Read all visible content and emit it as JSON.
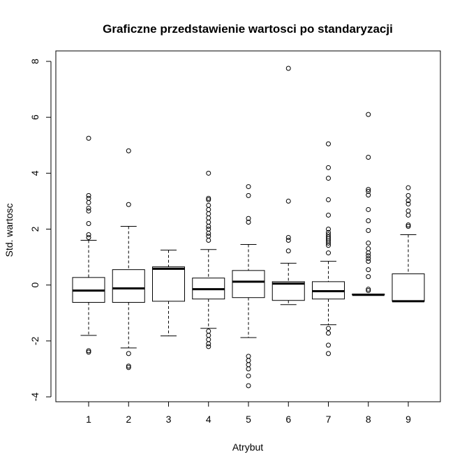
{
  "chart_data": {
    "type": "boxplot",
    "title": "Graficzne przedstawienie wartosci po standaryzacji",
    "xlabel": "Atrybut",
    "ylabel": "Std. wartosc",
    "ylim": [
      -4,
      8
    ],
    "yticks": [
      -4,
      -2,
      0,
      2,
      4,
      6,
      8
    ],
    "ytick_labels": [
      "-4",
      "-2",
      "0",
      "2",
      "4",
      "6",
      "8"
    ],
    "grid": false,
    "legend": "none",
    "categories": [
      "1",
      "2",
      "3",
      "4",
      "5",
      "6",
      "7",
      "8",
      "9"
    ],
    "boxes": [
      {
        "category": "1",
        "whisker_low": -1.8,
        "q1": -0.62,
        "median": -0.2,
        "q3": 0.27,
        "whisker_high": 1.6,
        "outliers": [
          5.25,
          3.2,
          3.1,
          2.95,
          2.75,
          2.65,
          2.2,
          1.8,
          1.7,
          -2.35,
          -2.4
        ]
      },
      {
        "category": "2",
        "whisker_low": -2.25,
        "q1": -0.62,
        "median": -0.12,
        "q3": 0.55,
        "whisker_high": 2.1,
        "outliers": [
          4.8,
          2.88,
          -2.45,
          -2.9,
          -2.95
        ]
      },
      {
        "category": "3",
        "whisker_low": -1.82,
        "q1": -0.58,
        "median": 0.58,
        "q3": 0.65,
        "whisker_high": 1.25,
        "outliers": []
      },
      {
        "category": "4",
        "whisker_low": -1.55,
        "q1": -0.5,
        "median": -0.15,
        "q3": 0.25,
        "whisker_high": 1.27,
        "outliers": [
          4.0,
          3.1,
          3.05,
          2.85,
          2.7,
          2.55,
          2.4,
          2.25,
          2.1,
          2.0,
          1.85,
          1.75,
          1.6,
          -1.65,
          -1.8,
          -1.95,
          -2.1,
          -2.2
        ]
      },
      {
        "category": "5",
        "whisker_low": -1.88,
        "q1": -0.45,
        "median": 0.12,
        "q3": 0.52,
        "whisker_high": 1.45,
        "outliers": [
          3.52,
          3.2,
          2.38,
          2.25,
          -2.55,
          -2.7,
          -2.85,
          -3.0,
          -3.25,
          -3.6
        ]
      },
      {
        "category": "6",
        "whisker_low": -0.7,
        "q1": -0.55,
        "median": 0.05,
        "q3": 0.12,
        "whisker_high": 0.78,
        "outliers": [
          7.75,
          3.0,
          1.7,
          1.6,
          1.22
        ]
      },
      {
        "category": "7",
        "whisker_low": -1.42,
        "q1": -0.5,
        "median": -0.22,
        "q3": 0.12,
        "whisker_high": 0.85,
        "outliers": [
          5.05,
          4.2,
          3.82,
          3.05,
          2.5,
          2.0,
          1.88,
          1.8,
          1.72,
          1.65,
          1.58,
          1.5,
          1.42,
          1.15,
          -1.55,
          -1.72,
          -2.15,
          -2.45
        ]
      },
      {
        "category": "8",
        "whisker_low": -0.35,
        "q1": -0.35,
        "median": -0.35,
        "q3": -0.32,
        "whisker_high": -0.32,
        "outliers": [
          6.1,
          4.57,
          3.42,
          3.35,
          3.22,
          2.7,
          2.3,
          1.95,
          1.5,
          1.3,
          1.15,
          1.05,
          0.95,
          0.85,
          0.55,
          0.3,
          -0.15,
          -0.2
        ]
      },
      {
        "category": "9",
        "whisker_low": -0.58,
        "q1": -0.58,
        "median": -0.58,
        "q3": 0.4,
        "whisker_high": 1.8,
        "outliers": [
          3.48,
          3.2,
          3.02,
          2.9,
          2.65,
          2.5,
          2.15,
          2.1
        ]
      }
    ]
  }
}
